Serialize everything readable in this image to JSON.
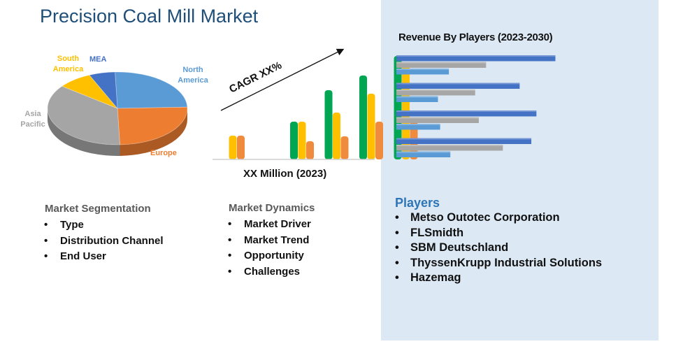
{
  "title": "Precision Coal Mill Market",
  "colors": {
    "title": "#1f4e79",
    "panel": "#dce9f5",
    "green": "#00a651",
    "yellow": "#ffc000",
    "orange": "#f08a3c",
    "blue_bar": "#4472c4",
    "gray_bar": "#a6a6a6",
    "lightblue_bar": "#5b9bd5",
    "players_heading": "#2e75b6"
  },
  "pie": {
    "labels": {
      "north_america": "North America",
      "europe": "Europe",
      "asia_pacific": "Asia Pacific",
      "south_america": "South America",
      "mea": "MEA"
    }
  },
  "growth": {
    "cagr_label": "CAGR XX%",
    "caption": "XX Million (2023)"
  },
  "revenue": {
    "title": "Revenue By Players (2023-2030)"
  },
  "segmentation": {
    "heading": "Market Segmentation",
    "items": [
      "Type",
      "Distribution Channel",
      "End User"
    ]
  },
  "dynamics": {
    "heading": "Market Dynamics",
    "items": [
      "Market Driver",
      "Market Trend",
      "Opportunity",
      "Challenges"
    ]
  },
  "players": {
    "heading": "Players",
    "items": [
      "Metso Outotec Corporation",
      "FLSmidth",
      "SBM Deutschland",
      "ThyssenKrupp Industrial Solutions",
      "Hazemag"
    ]
  },
  "chart_data": [
    {
      "type": "pie",
      "categories": [
        "North America",
        "Europe",
        "Asia Pacific",
        "South America",
        "MEA"
      ],
      "values": [
        25,
        25,
        36,
        8,
        6
      ],
      "colors": [
        "#5b9bd5",
        "#ed7d31",
        "#a5a5a5",
        "#ffc000",
        "#4472c4"
      ]
    },
    {
      "type": "bar",
      "categories": [
        "1",
        "2",
        "3",
        "4",
        "5",
        "6"
      ],
      "series": [
        {
          "color": "#00a651",
          "values": [
            0,
            0,
            54,
            99,
            120,
            148
          ]
        },
        {
          "color": "#ffc000",
          "values": [
            34,
            0,
            54,
            67,
            94,
            134
          ]
        },
        {
          "color": "#f08a3c",
          "values": [
            34,
            0,
            26,
            33,
            54,
            54
          ]
        }
      ],
      "ylim": [
        0,
        160
      ]
    },
    {
      "type": "bar",
      "orientation": "horizontal",
      "categories": [
        "1",
        "2",
        "3",
        "4"
      ],
      "series": [
        {
          "color": "#4472c4",
          "values": [
            218,
            169,
            192,
            185
          ]
        },
        {
          "color": "#a6a6a6",
          "values": [
            123,
            108,
            113,
            146
          ]
        },
        {
          "color": "#5b9bd5",
          "values": [
            72,
            57,
            60,
            74
          ]
        }
      ],
      "xlim": [
        0,
        230
      ]
    }
  ]
}
